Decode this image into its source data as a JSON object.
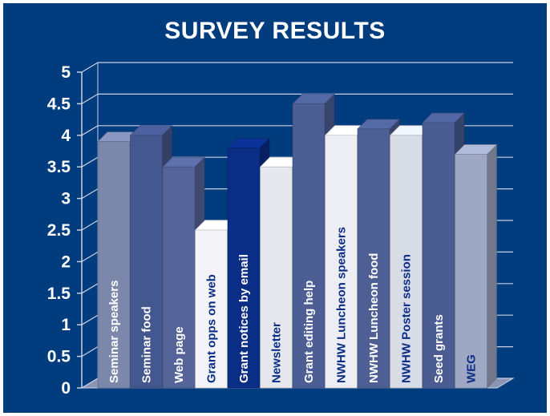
{
  "chart_data": {
    "type": "bar",
    "title": "SURVEY RESULTS",
    "xlabel": "",
    "ylabel": "",
    "ylim": [
      0,
      5
    ],
    "yticks": [
      "0",
      "0.5",
      "1",
      "1.5",
      "2",
      "2.5",
      "3",
      "3.5",
      "4",
      "4.5",
      "5"
    ],
    "grid": true,
    "legend": "none",
    "categories": [
      "Seminar speakers",
      "Seminar food",
      "Web page",
      "Grant opps on web",
      "Grant notices by email",
      "Newsletter",
      "Grant editing help",
      "NWHW Luncheon speakers",
      "NWHW Luncheon food",
      "NWHW Poster session",
      "Seed grants",
      "WEG"
    ],
    "values": [
      3.9,
      4.0,
      3.5,
      2.5,
      3.8,
      3.5,
      4.5,
      4.0,
      4.1,
      4.0,
      4.2,
      3.7
    ],
    "bar_colors": [
      "#7b87ab",
      "#45578f",
      "#55659a",
      "#f4f4f8",
      "#0a2d86",
      "#e6e8ee",
      "#4c5e94",
      "#eceef4",
      "#4d5f94",
      "#d8dce6",
      "#4a5c92",
      "#9ea7c3"
    ],
    "label_colors": [
      "#ffffff",
      "#ffffff",
      "#ffffff",
      "#0a2d86",
      "#ffffff",
      "#0a2d86",
      "#ffffff",
      "#0a2d86",
      "#ffffff",
      "#0a2d86",
      "#ffffff",
      "#0a2d86"
    ]
  }
}
